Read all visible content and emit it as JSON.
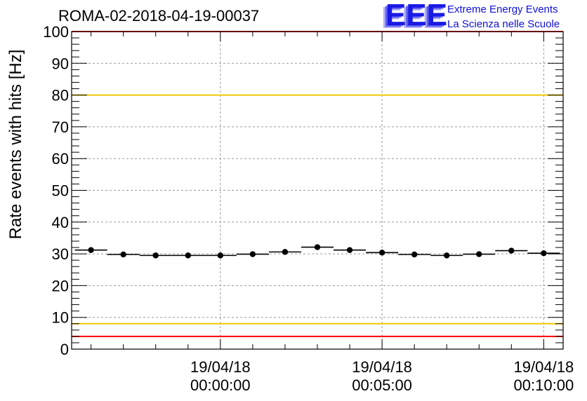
{
  "title": "ROMA-02-2018-04-19-00037",
  "logo": {
    "letters": "EEE",
    "line1": "Extreme Energy Events",
    "line2": "La Scienza nelle Scuole",
    "color": "#1a1ae6"
  },
  "chart_data": {
    "type": "scatter",
    "title": "ROMA-02-2018-04-19-00037",
    "xlabel": "",
    "ylabel": "Rate events with hits [Hz]",
    "ylim": [
      0,
      100
    ],
    "yticks": [
      0,
      10,
      20,
      30,
      40,
      50,
      60,
      70,
      80,
      90,
      100
    ],
    "xlim_min": [
      -4.6,
      10.6
    ],
    "xticks": [
      {
        "min": 0,
        "date": "19/04/18",
        "time": "00:00:00"
      },
      {
        "min": 5,
        "date": "19/04/18",
        "time": "00:05:00"
      },
      {
        "min": 10,
        "date": "19/04/18",
        "time": "00:10:00"
      }
    ],
    "grid": true,
    "bin_width_min": 1.0,
    "points_min": [
      -4.0,
      -3.0,
      -2.0,
      -1.0,
      0.0,
      1.0,
      2.0,
      3.0,
      4.0,
      5.0,
      6.0,
      7.0,
      8.0,
      9.0,
      10.0
    ],
    "values": [
      31.2,
      29.8,
      29.5,
      29.5,
      29.5,
      29.9,
      30.6,
      32.1,
      31.2,
      30.4,
      29.8,
      29.5,
      29.9,
      31.0,
      30.2
    ],
    "reference_lines": [
      {
        "value": 100,
        "color": "#ff0000"
      },
      {
        "value": 80,
        "color": "#f0c800"
      },
      {
        "value": 8,
        "color": "#f0c800"
      },
      {
        "value": 4,
        "color": "#ff0000"
      }
    ]
  }
}
